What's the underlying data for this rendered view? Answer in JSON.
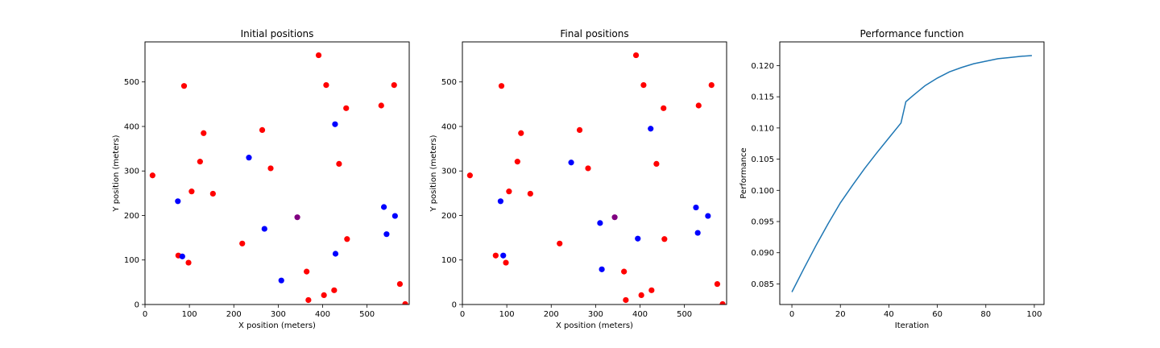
{
  "chart_data": [
    {
      "type": "scatter",
      "title": "Initial positions",
      "xlabel": "X position (meters)",
      "ylabel": "Y position (meters)",
      "xlim": [
        0,
        595
      ],
      "ylim": [
        0,
        590
      ],
      "xticks": [
        0,
        100,
        200,
        300,
        400,
        500
      ],
      "yticks": [
        0,
        100,
        200,
        300,
        400,
        500
      ],
      "grid": false,
      "series": [
        {
          "color": "#ff0000",
          "points": [
            [
              17,
              290
            ],
            [
              75,
              110
            ],
            [
              98,
              94
            ],
            [
              88,
              491
            ],
            [
              105,
              254
            ],
            [
              124,
              321
            ],
            [
              132,
              385
            ],
            [
              153,
              249
            ],
            [
              219,
              137
            ],
            [
              264,
              392
            ],
            [
              283,
              306
            ],
            [
              364,
              74
            ],
            [
              368,
              10
            ],
            [
              391,
              560
            ],
            [
              403,
              21
            ],
            [
              408,
              493
            ],
            [
              426,
              32
            ],
            [
              437,
              316
            ],
            [
              455,
              147
            ],
            [
              453,
              441
            ],
            [
              532,
              447
            ],
            [
              561,
              493
            ],
            [
              574,
              46
            ],
            [
              586,
              1
            ]
          ]
        },
        {
          "color": "#0000ff",
          "points": [
            [
              74,
              232
            ],
            [
              84,
              108
            ],
            [
              234,
              330
            ],
            [
              269,
              170
            ],
            [
              307,
              54
            ],
            [
              428,
              405
            ],
            [
              429,
              114
            ],
            [
              538,
              219
            ],
            [
              544,
              158
            ],
            [
              563,
              199
            ]
          ]
        },
        {
          "color": "#800080",
          "points": [
            [
              343,
              196
            ]
          ]
        }
      ]
    },
    {
      "type": "scatter",
      "title": "Final positions",
      "xlabel": "X position (meters)",
      "ylabel": "Y position (meters)",
      "xlim": [
        0,
        595
      ],
      "ylim": [
        0,
        590
      ],
      "xticks": [
        0,
        100,
        200,
        300,
        400,
        500
      ],
      "yticks": [
        0,
        100,
        200,
        300,
        400,
        500
      ],
      "grid": false,
      "series": [
        {
          "color": "#ff0000",
          "points": [
            [
              17,
              290
            ],
            [
              75,
              110
            ],
            [
              98,
              94
            ],
            [
              88,
              491
            ],
            [
              105,
              254
            ],
            [
              124,
              321
            ],
            [
              132,
              385
            ],
            [
              153,
              249
            ],
            [
              219,
              137
            ],
            [
              264,
              392
            ],
            [
              283,
              306
            ],
            [
              364,
              74
            ],
            [
              368,
              10
            ],
            [
              391,
              560
            ],
            [
              403,
              21
            ],
            [
              408,
              493
            ],
            [
              426,
              32
            ],
            [
              437,
              316
            ],
            [
              455,
              147
            ],
            [
              453,
              441
            ],
            [
              532,
              447
            ],
            [
              561,
              493
            ],
            [
              574,
              46
            ],
            [
              586,
              1
            ]
          ]
        },
        {
          "color": "#0000ff",
          "points": [
            [
              86,
              232
            ],
            [
              92,
              110
            ],
            [
              245,
              319
            ],
            [
              310,
              183
            ],
            [
              314,
              79
            ],
            [
              424,
              395
            ],
            [
              395,
              148
            ],
            [
              526,
              218
            ],
            [
              530,
              161
            ],
            [
              553,
              199
            ]
          ]
        },
        {
          "color": "#800080",
          "points": [
            [
              343,
              196
            ]
          ]
        }
      ]
    },
    {
      "type": "line",
      "title": "Performance function",
      "xlabel": "Iteration",
      "ylabel": "Performance",
      "xlim": [
        -5,
        104
      ],
      "ylim": [
        0.0817,
        0.1238
      ],
      "xticks": [
        0,
        20,
        40,
        60,
        80,
        100
      ],
      "yticks": [
        "0.085",
        "0.090",
        "0.095",
        "0.100",
        "0.105",
        "0.110",
        "0.115",
        "0.120"
      ],
      "grid": false,
      "series": [
        {
          "color": "#1f77b4",
          "x": [
            0,
            5,
            10,
            15,
            20,
            25,
            30,
            35,
            40,
            45,
            47,
            50,
            55,
            60,
            65,
            70,
            75,
            80,
            85,
            90,
            95,
            99
          ],
          "y": [
            0.0837,
            0.0875,
            0.0912,
            0.0947,
            0.098,
            0.1008,
            0.1035,
            0.106,
            0.1084,
            0.1108,
            0.1142,
            0.1152,
            0.1168,
            0.118,
            0.119,
            0.1197,
            0.1203,
            0.1207,
            0.1211,
            0.1213,
            0.1215,
            0.1216
          ]
        }
      ]
    }
  ]
}
